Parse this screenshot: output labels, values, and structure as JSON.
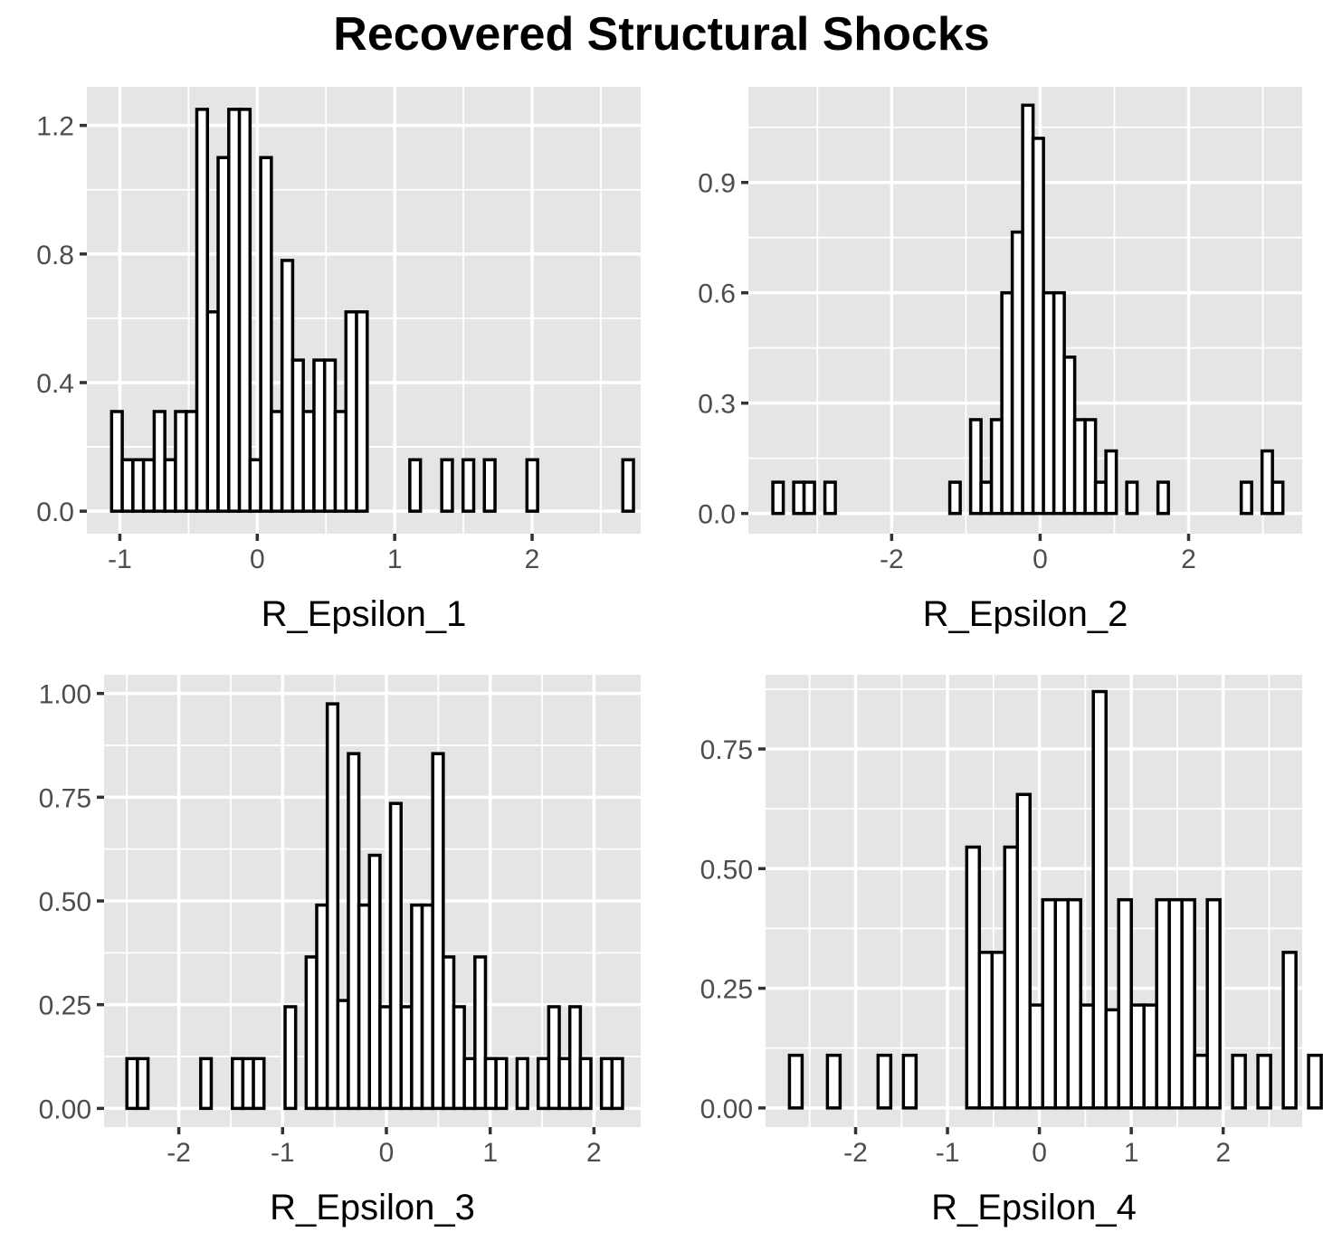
{
  "title": "Recovered Structural Shocks",
  "chart_data": [
    {
      "type": "bar",
      "xlabel": "R_Epsilon_1",
      "ylabel": "",
      "xlim": [
        -1.24,
        2.79
      ],
      "ylim": [
        -0.07,
        1.32
      ],
      "xticks": [
        -1,
        0,
        1,
        2
      ],
      "yticks": [
        0.0,
        0.4,
        0.8,
        1.2
      ],
      "ytick_decimals": 1,
      "bins": {
        "start": -1.06,
        "width": 0.0775,
        "heights": [
          0.31,
          0.16,
          0.16,
          0.16,
          0.31,
          0.16,
          0.31,
          0.31,
          1.25,
          0.62,
          1.1,
          1.25,
          1.25,
          0.16,
          1.1,
          0.31,
          0.78,
          0.47,
          0.31,
          0.47,
          0.47,
          0.31,
          0.62,
          0.62,
          0,
          0,
          0,
          0,
          0.16,
          0,
          0,
          0.16,
          0,
          0.16,
          0,
          0.16,
          0,
          0,
          0,
          0.16,
          0,
          0,
          0,
          0,
          0,
          0,
          0,
          0,
          0.16
        ]
      }
    },
    {
      "type": "bar",
      "xlabel": "R_Epsilon_2",
      "ylabel": "",
      "xlim": [
        -3.93,
        3.53
      ],
      "ylim": [
        -0.055,
        1.16
      ],
      "xticks": [
        -2,
        0,
        2
      ],
      "yticks": [
        0.0,
        0.3,
        0.6,
        0.9
      ],
      "ytick_decimals": 1,
      "bins": {
        "start": -3.6,
        "width": 0.1402,
        "heights": [
          0.085,
          0,
          0.085,
          0.085,
          0,
          0.085,
          0,
          0,
          0,
          0,
          0,
          0,
          0,
          0,
          0,
          0,
          0,
          0.085,
          0,
          0.255,
          0.085,
          0.255,
          0.6,
          0.765,
          1.11,
          1.02,
          0.6,
          0.6,
          0.425,
          0.255,
          0.255,
          0.085,
          0.17,
          0,
          0.085,
          0,
          0,
          0.085,
          0,
          0,
          0,
          0,
          0,
          0,
          0,
          0.085,
          0,
          0.17,
          0.085
        ]
      }
    },
    {
      "type": "bar",
      "xlabel": "R_Epsilon_3",
      "ylabel": "",
      "xlim": [
        -2.72,
        2.45
      ],
      "ylim": [
        -0.045,
        1.045
      ],
      "xticks": [
        -2,
        -1,
        0,
        1,
        2
      ],
      "yticks": [
        0.0,
        0.25,
        0.5,
        0.75,
        1.0
      ],
      "ytick_decimals": 2,
      "bins": {
        "start": -2.5,
        "width": 0.1016,
        "heights": [
          0.12,
          0.12,
          0,
          0,
          0,
          0,
          0,
          0.12,
          0,
          0,
          0.12,
          0.12,
          0.12,
          0,
          0,
          0.245,
          0,
          0.365,
          0.49,
          0.975,
          0.26,
          0.855,
          0.49,
          0.61,
          0.245,
          0.735,
          0.245,
          0.49,
          0.49,
          0.855,
          0.365,
          0.245,
          0.12,
          0.365,
          0.12,
          0.12,
          0,
          0.12,
          0,
          0.12,
          0.245,
          0.12,
          0.245,
          0.12,
          0,
          0.12,
          0.12
        ]
      }
    },
    {
      "type": "bar",
      "xlabel": "R_Epsilon_4",
      "ylabel": "",
      "xlim": [
        -2.98,
        2.86
      ],
      "ylim": [
        -0.04,
        0.905
      ],
      "xticks": [
        -2,
        -1,
        0,
        1,
        2
      ],
      "yticks": [
        0.0,
        0.25,
        0.5,
        0.75
      ],
      "ytick_decimals": 2,
      "bins": {
        "start": -2.72,
        "width": 0.1378,
        "heights": [
          0.11,
          0,
          0,
          0.11,
          0,
          0,
          0,
          0.11,
          0,
          0.11,
          0,
          0,
          0,
          0,
          0.545,
          0.325,
          0.325,
          0.545,
          0.655,
          0.215,
          0.435,
          0.435,
          0.435,
          0.215,
          0.87,
          0.205,
          0.435,
          0.215,
          0.215,
          0.435,
          0.435,
          0.435,
          0.11,
          0.435,
          0,
          0.11,
          0,
          0.11,
          0,
          0.325,
          0,
          0.11,
          0,
          0.11,
          0.11,
          0,
          0.11,
          0,
          0.11
        ]
      }
    }
  ]
}
